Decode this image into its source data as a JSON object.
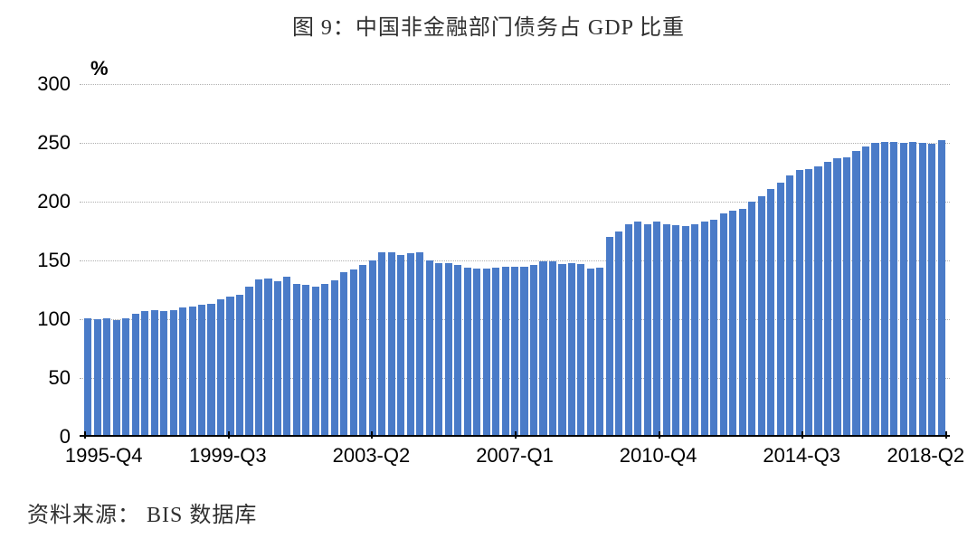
{
  "title": "图 9：中国非金融部门债务占 GDP 比重",
  "source": "资料来源： BIS 数据库",
  "chart": {
    "type": "bar",
    "y_unit": "%",
    "ylim": [
      0,
      300
    ],
    "ytick_step": 50,
    "y_ticks": [
      0,
      50,
      100,
      150,
      200,
      250,
      300
    ],
    "bar_color": "#4a7bc8",
    "grid_color": "#b0b0b0",
    "axis_color": "#000000",
    "background_color": "#ffffff",
    "label_fontsize": 22,
    "n_bars": 91,
    "x_label_indices": [
      0,
      15,
      30,
      45,
      60,
      75,
      90
    ],
    "x_labels": [
      "1995-Q4",
      "1999-Q3",
      "2003-Q2",
      "2007-Q1",
      "2010-Q4",
      "2014-Q3",
      "2018-Q2"
    ],
    "values": [
      101,
      100,
      101,
      99,
      101,
      105,
      107,
      108,
      107,
      108,
      110,
      111,
      112,
      113,
      117,
      119,
      121,
      128,
      134,
      135,
      132,
      136,
      130,
      129,
      128,
      130,
      133,
      140,
      142,
      146,
      150,
      157,
      157,
      155,
      156,
      157,
      150,
      148,
      148,
      146,
      144,
      143,
      143,
      144,
      145,
      145,
      145,
      146,
      149,
      149,
      147,
      148,
      147,
      143,
      144,
      170,
      175,
      181,
      183,
      181,
      183,
      181,
      180,
      179,
      181,
      183,
      185,
      190,
      192,
      194,
      200,
      205,
      211,
      216,
      222,
      227,
      228,
      230,
      234,
      237,
      238,
      243,
      247,
      250,
      251,
      251,
      250,
      251,
      250,
      249,
      252
    ]
  }
}
